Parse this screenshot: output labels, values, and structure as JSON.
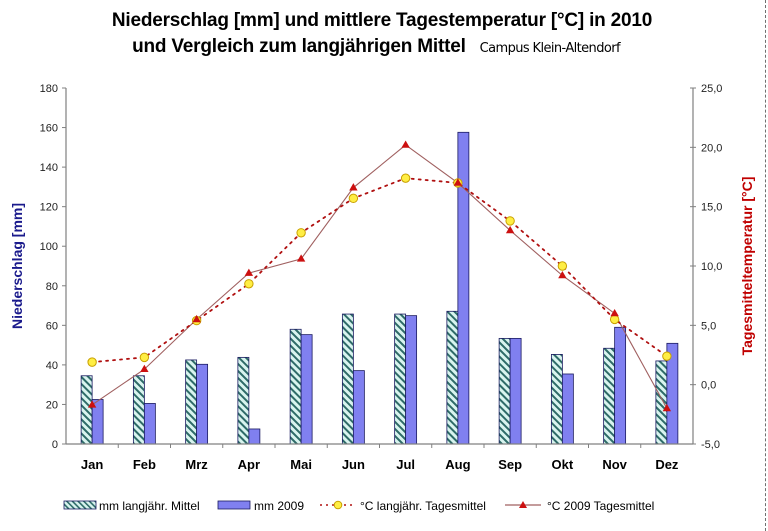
{
  "title_line1": "Niederschlag [mm] und mittlere Tagestemperatur [°C] in 2010",
  "title_line2": "und Vergleich zum langjährigen Mittel",
  "subtitle": "Campus Klein-Altendorf",
  "colors": {
    "hatch_bg": "#d9f4ef",
    "hatch_stripe": "#2e6b68",
    "bar_2009": "#8080f0",
    "bar_border": "#1a1a60",
    "avg_line": "#b01010",
    "circle_fill": "#ffee44",
    "circle_stroke": "#c8a000",
    "line_2009": "#a06060",
    "triangle": "#cc1010",
    "axis": "#808080"
  },
  "chart_data": {
    "type": "bar+line",
    "title": "Niederschlag [mm] und mittlere Tagestemperatur [°C] in 2010 und Vergleich zum langjährigen Mittel",
    "subtitle": "Campus Klein-Altendorf",
    "categories": [
      "Jan",
      "Feb",
      "Mrz",
      "Apr",
      "Mai",
      "Jun",
      "Jul",
      "Aug",
      "Sep",
      "Okt",
      "Nov",
      "Dez"
    ],
    "ylabel": "Niederschlag [mm]",
    "y2label": "Tagesmitteltemperatur [°C]",
    "ylim": [
      0,
      180
    ],
    "y2lim": [
      -5,
      25
    ],
    "yticks": [
      "0",
      "20",
      "40",
      "60",
      "80",
      "100",
      "120",
      "140",
      "160",
      "180"
    ],
    "y2ticks": [
      "-5,0",
      "0,0",
      "5,0",
      "10,0",
      "15,0",
      "20,0",
      "25,0"
    ],
    "grid": false,
    "legend_position": "bottom",
    "series": [
      {
        "name": "mm langjähr. Mittel",
        "axis": "left",
        "kind": "bar-hatched",
        "values": [
          34.5,
          34.5,
          42.5,
          43.8,
          58.0,
          65.7,
          65.7,
          67.1,
          53.4,
          45.3,
          48.4,
          42.0
        ]
      },
      {
        "name": "mm 2009",
        "axis": "left",
        "kind": "bar",
        "values": [
          22.5,
          20.5,
          40.3,
          7.6,
          55.3,
          37.1,
          64.9,
          157.6,
          53.4,
          35.4,
          59.0,
          50.9
        ]
      },
      {
        "name": "°C langjähr. Tagesmittel",
        "axis": "right",
        "kind": "dotted-line-circle",
        "values": [
          1.9,
          2.3,
          5.4,
          8.5,
          12.8,
          15.7,
          17.4,
          17.0,
          13.8,
          10.0,
          5.5,
          2.4
        ]
      },
      {
        "name": "°C 2009 Tagesmittel",
        "axis": "right",
        "kind": "line-triangle",
        "values": [
          -1.7,
          1.3,
          5.5,
          9.4,
          10.6,
          16.6,
          20.2,
          17.0,
          13.0,
          9.2,
          6.0,
          -2.0
        ]
      }
    ]
  }
}
